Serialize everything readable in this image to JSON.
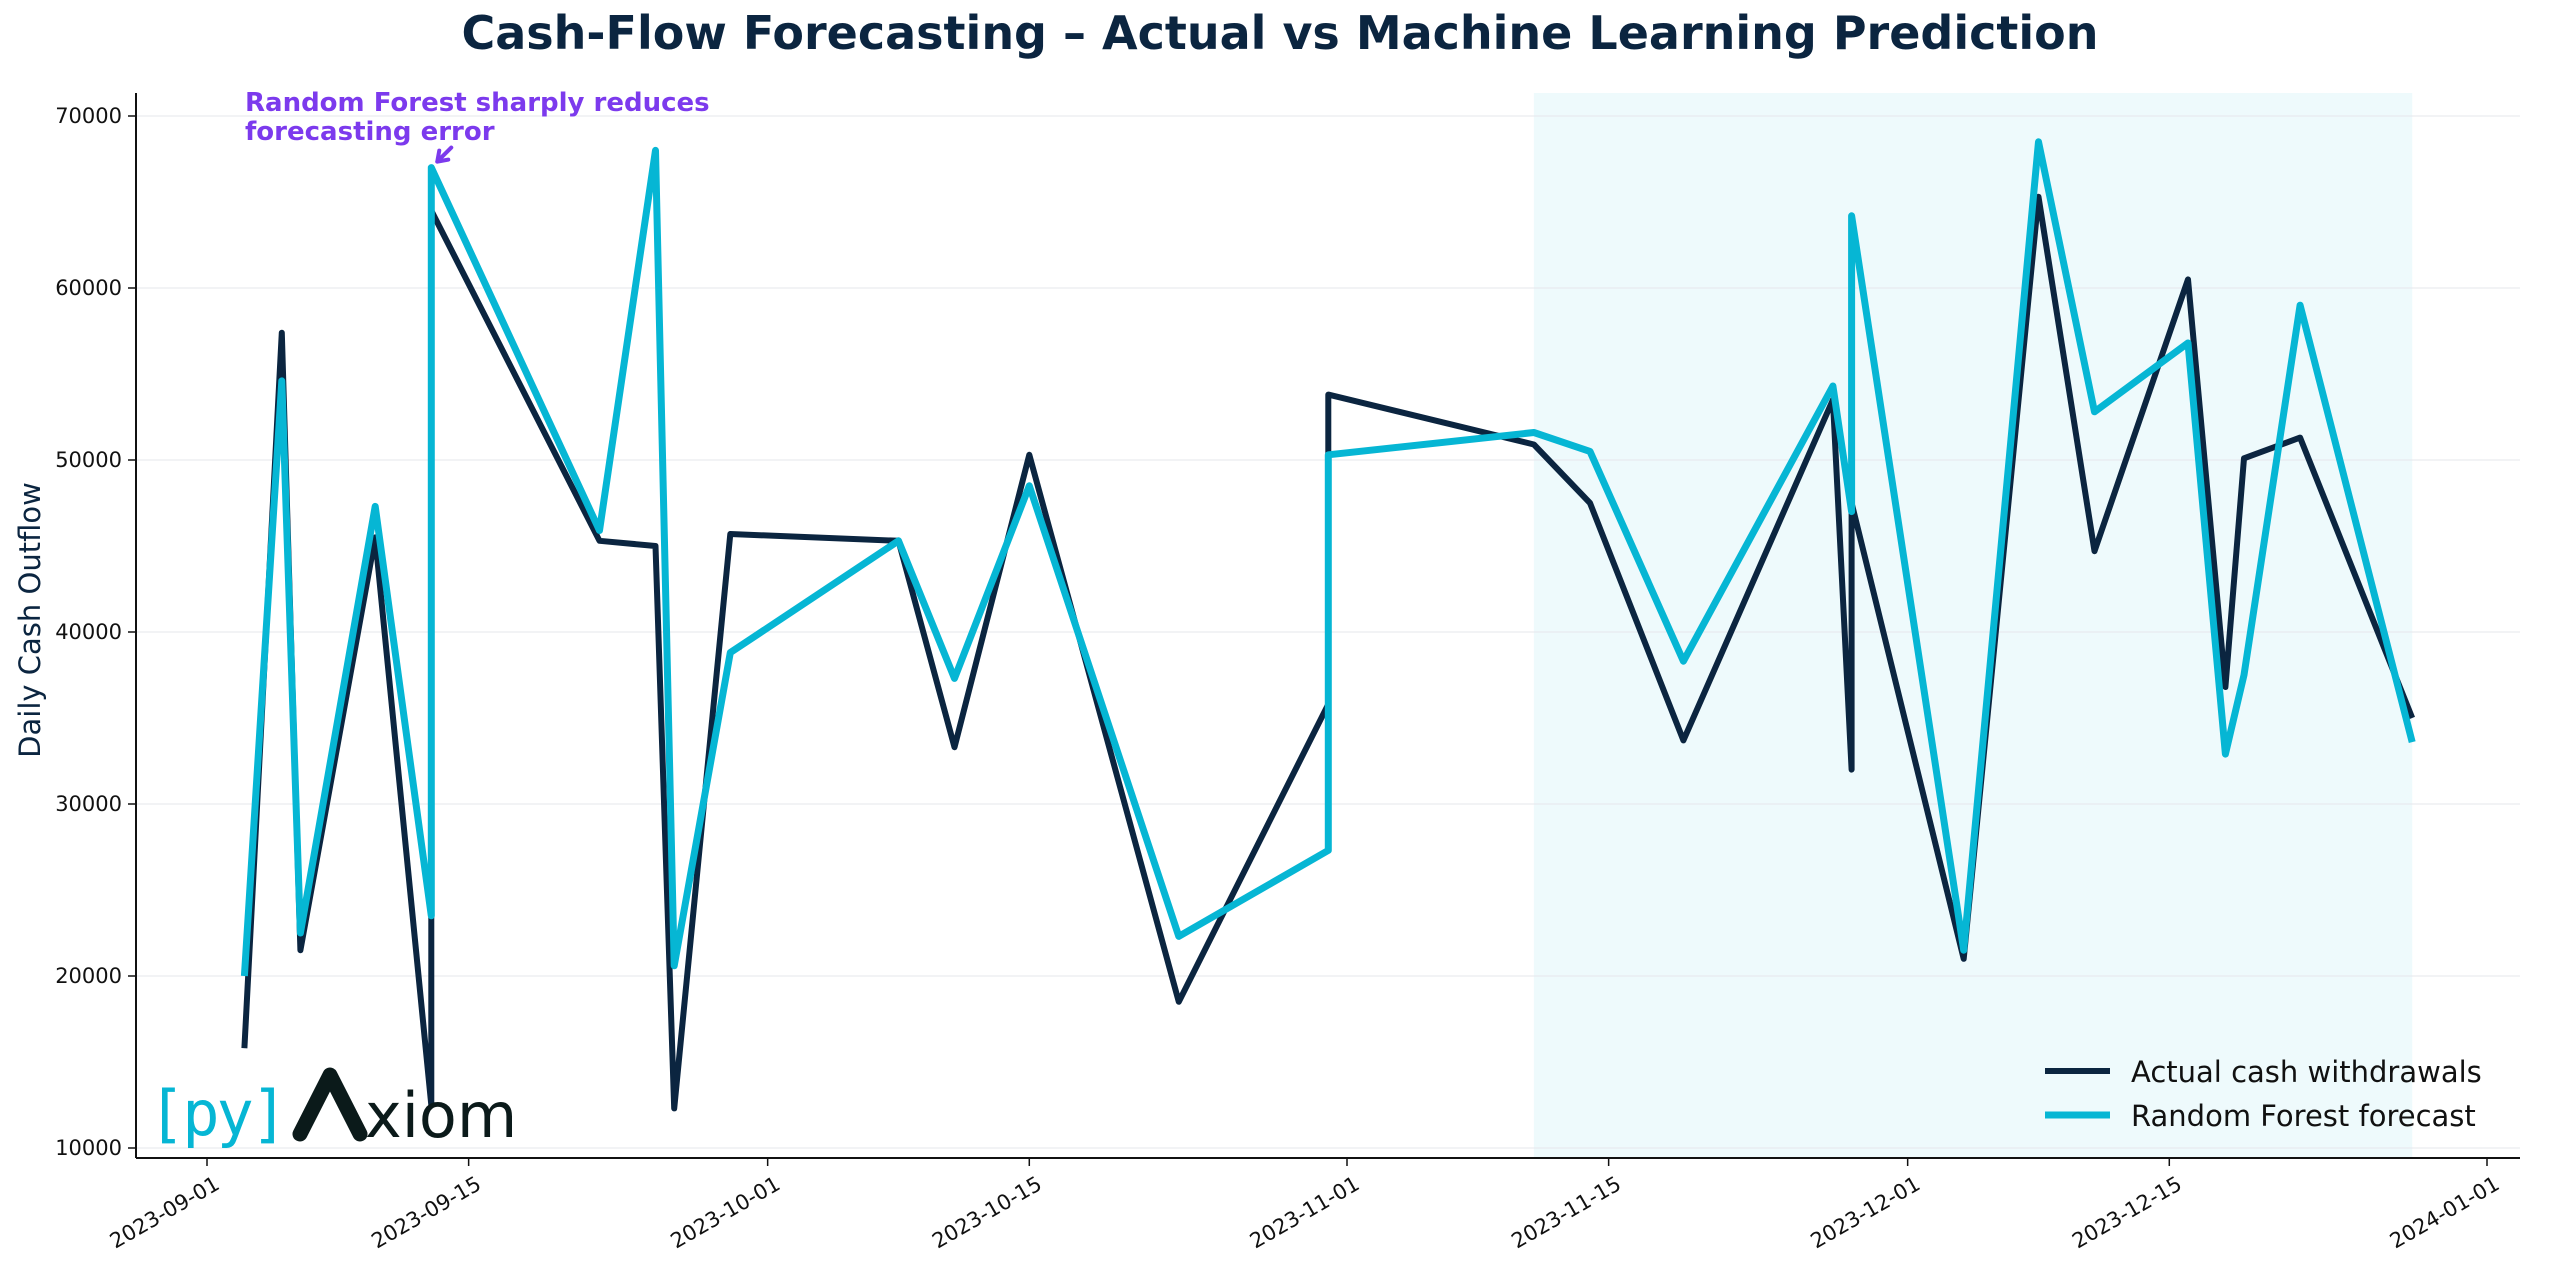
{
  "chart_data": {
    "type": "line",
    "title": "Cash-Flow Forecasting – Actual vs Machine Learning Prediction",
    "xlabel": "",
    "ylabel": "Daily Cash Outflow",
    "xlim": [
      "2023-08-29",
      "2024-01-03"
    ],
    "ylim": [
      9500,
      71300
    ],
    "x_ticks": [
      "2023-09-01",
      "2023-09-15",
      "2023-10-01",
      "2023-10-15",
      "2023-11-01",
      "2023-11-15",
      "2023-12-01",
      "2023-12-15",
      "2024-01-01"
    ],
    "y_ticks": [
      10000,
      20000,
      30000,
      40000,
      50000,
      60000,
      70000
    ],
    "grid": "horizontal",
    "legend_position": "lower-right",
    "shaded_region": {
      "from": "2023-11-11",
      "to": "2023-12-28",
      "color": "#e0f5f9"
    },
    "annotation": {
      "lines": [
        "Random Forest sharply reduces",
        "forecasting error"
      ],
      "target_x": "2023-09-13",
      "target_y": 67000,
      "color": "#7c3aed"
    },
    "series": [
      {
        "name": "Actual cash withdrawals",
        "color": "#0b2540",
        "points": [
          [
            "2023-09-03",
            15800
          ],
          [
            "2023-09-05",
            57400
          ],
          [
            "2023-09-06",
            21500
          ],
          [
            "2023-09-10",
            45500
          ],
          [
            "2023-09-13",
            12500
          ],
          [
            "2023-09-13",
            64500
          ],
          [
            "2023-09-22",
            45300
          ],
          [
            "2023-09-25",
            45000
          ],
          [
            "2023-09-26",
            12300
          ],
          [
            "2023-09-29",
            45700
          ],
          [
            "2023-10-08",
            45300
          ],
          [
            "2023-10-11",
            33300
          ],
          [
            "2023-10-15",
            50300
          ],
          [
            "2023-10-23",
            18500
          ],
          [
            "2023-10-31",
            35800
          ],
          [
            "2023-10-31",
            53800
          ],
          [
            "2023-11-11",
            50900
          ],
          [
            "2023-11-14",
            47500
          ],
          [
            "2023-11-19",
            33700
          ],
          [
            "2023-11-27",
            53500
          ],
          [
            "2023-11-28",
            32000
          ],
          [
            "2023-11-28",
            47500
          ],
          [
            "2023-12-04",
            21000
          ],
          [
            "2023-12-08",
            65300
          ],
          [
            "2023-12-11",
            44700
          ],
          [
            "2023-12-16",
            60500
          ],
          [
            "2023-12-18",
            36800
          ],
          [
            "2023-12-19",
            50100
          ],
          [
            "2023-12-22",
            51300
          ],
          [
            "2023-12-28",
            35000
          ]
        ]
      },
      {
        "name": "Random Forest forecast",
        "color": "#06b6d4",
        "points": [
          [
            "2023-09-03",
            20000
          ],
          [
            "2023-09-05",
            54600
          ],
          [
            "2023-09-06",
            22500
          ],
          [
            "2023-09-10",
            47300
          ],
          [
            "2023-09-13",
            23500
          ],
          [
            "2023-09-13",
            67000
          ],
          [
            "2023-09-22",
            45900
          ],
          [
            "2023-09-25",
            68000
          ],
          [
            "2023-09-26",
            20600
          ],
          [
            "2023-09-29",
            38800
          ],
          [
            "2023-10-08",
            45300
          ],
          [
            "2023-10-11",
            37300
          ],
          [
            "2023-10-15",
            48500
          ],
          [
            "2023-10-23",
            22300
          ],
          [
            "2023-10-31",
            27300
          ],
          [
            "2023-10-31",
            50300
          ],
          [
            "2023-11-11",
            51600
          ],
          [
            "2023-11-14",
            50500
          ],
          [
            "2023-11-19",
            38300
          ],
          [
            "2023-11-27",
            54300
          ],
          [
            "2023-11-28",
            47000
          ],
          [
            "2023-11-28",
            64200
          ],
          [
            "2023-12-04",
            21500
          ],
          [
            "2023-12-08",
            68500
          ],
          [
            "2023-12-11",
            52800
          ],
          [
            "2023-12-16",
            56800
          ],
          [
            "2023-12-18",
            32900
          ],
          [
            "2023-12-19",
            37500
          ],
          [
            "2023-12-22",
            59000
          ],
          [
            "2023-12-28",
            33600
          ]
        ]
      }
    ]
  },
  "logo": {
    "text": "[py]Λxiom",
    "bracket_part": "[py]",
    "lambda": "Λ",
    "rest": "xiom"
  }
}
